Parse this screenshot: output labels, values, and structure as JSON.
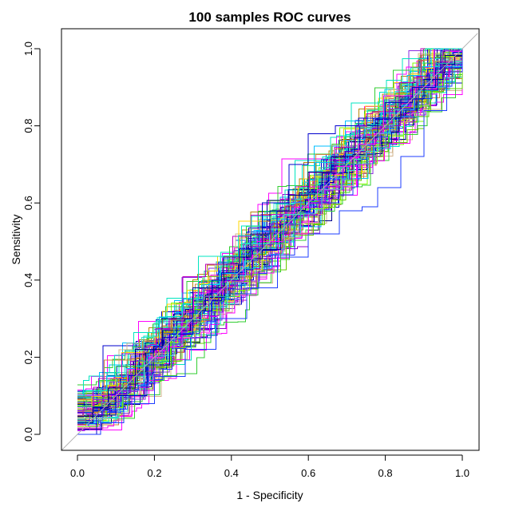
{
  "chart_data": {
    "type": "line",
    "title": "100 samples ROC curves",
    "xlabel": "1 - Specificity",
    "ylabel": "Sensitivity",
    "xlim": [
      0,
      1
    ],
    "ylim": [
      0,
      1
    ],
    "xticks": [
      "0.0",
      "0.2",
      "0.4",
      "0.6",
      "0.8",
      "1.0"
    ],
    "yticks": [
      "0.0",
      "0.2",
      "0.4",
      "0.6",
      "0.8",
      "1.0"
    ],
    "n_curves": 100,
    "reference_line": {
      "from": [
        0,
        0
      ],
      "to": [
        1,
        1
      ],
      "color": "#b0b0b0"
    },
    "palette": [
      "#00008b",
      "#0000cd",
      "#1e3cff",
      "#8a2be2",
      "#9400d3",
      "#c000c0",
      "#ff00ff",
      "#40e0d0",
      "#00e5c0",
      "#20b2aa",
      "#7fff00",
      "#66cd00",
      "#32cd32",
      "#d2b48c",
      "#cd853f",
      "#b8860b",
      "#ffd700",
      "#00bfff"
    ],
    "example_curves": [
      {
        "x": [
          0,
          0.04,
          0.08,
          0.15,
          0.22,
          0.3,
          0.38,
          0.45,
          0.5,
          0.55,
          0.6,
          0.66,
          0.72,
          0.78,
          0.84,
          0.9,
          0.95,
          0.98,
          1.0
        ],
        "y": [
          0.03,
          0.07,
          0.12,
          0.22,
          0.3,
          0.38,
          0.46,
          0.52,
          0.58,
          0.62,
          0.68,
          0.72,
          0.77,
          0.82,
          0.87,
          0.92,
          0.96,
          0.98,
          1.0
        ]
      },
      {
        "x": [
          0,
          0.05,
          0.1,
          0.18,
          0.24,
          0.3,
          0.35,
          0.42,
          0.48,
          0.55,
          0.6,
          0.67,
          0.73,
          0.8,
          0.87,
          0.93,
          1.0
        ],
        "y": [
          0.0,
          0.05,
          0.1,
          0.18,
          0.26,
          0.32,
          0.4,
          0.48,
          0.6,
          0.7,
          0.78,
          0.8,
          0.82,
          0.86,
          0.9,
          0.95,
          1.0
        ]
      },
      {
        "x": [
          0,
          0.06,
          0.12,
          0.2,
          0.28,
          0.36,
          0.44,
          0.52,
          0.6,
          0.68,
          0.74,
          0.78,
          0.84,
          0.9,
          0.96,
          1.0
        ],
        "y": [
          0.0,
          0.03,
          0.08,
          0.15,
          0.22,
          0.3,
          0.38,
          0.46,
          0.52,
          0.58,
          0.59,
          0.64,
          0.72,
          0.84,
          0.94,
          1.0
        ]
      }
    ]
  }
}
